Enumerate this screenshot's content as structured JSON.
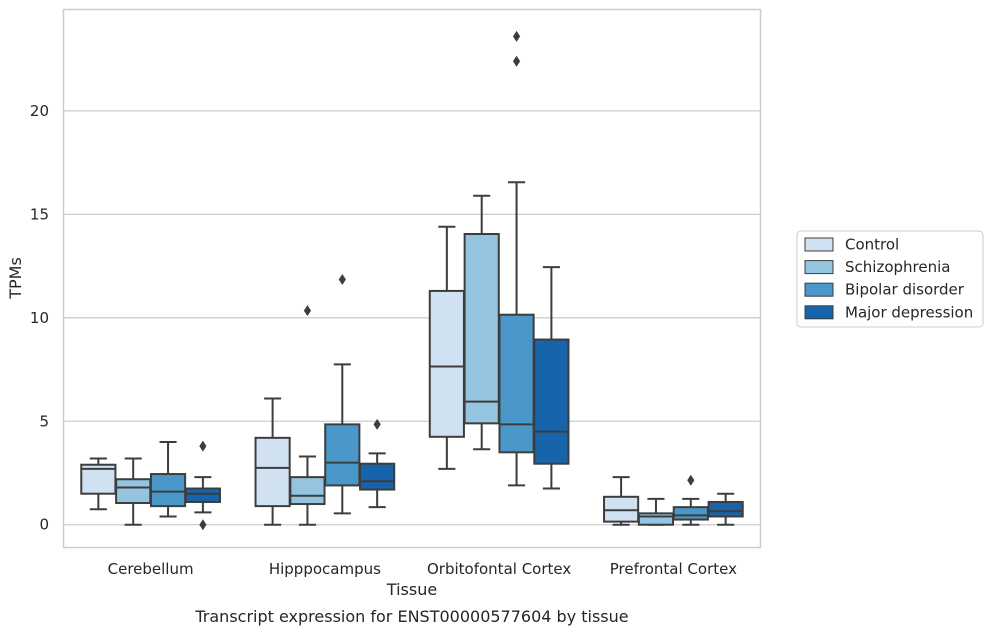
{
  "chart_data": {
    "type": "boxplot",
    "xlabel": "Tissue",
    "ylabel": "TPMs",
    "caption": "Transcript expression for ENST00000577604 by tissue",
    "ylim": [
      -1.1,
      24.9
    ],
    "yticks": [
      0,
      5,
      10,
      15,
      20
    ],
    "grid": "horizontal",
    "legend_position": "right",
    "categories": [
      "Cerebellum",
      "Hipppocampus",
      "Orbitofontal Cortex",
      "Prefrontal Cortex"
    ],
    "series": [
      {
        "name": "Control",
        "color": "#d0e1f2",
        "boxes": [
          {
            "whislo": 0.75,
            "q1": 1.5,
            "median": 2.7,
            "q3": 2.9,
            "whishi": 3.2,
            "fliers": []
          },
          {
            "whislo": 0.0,
            "q1": 0.9,
            "median": 2.75,
            "q3": 4.2,
            "whishi": 6.1,
            "fliers": []
          },
          {
            "whislo": 2.7,
            "q1": 4.25,
            "median": 7.65,
            "q3": 11.3,
            "whishi": 14.4,
            "fliers": []
          },
          {
            "whislo": 0.0,
            "q1": 0.15,
            "median": 0.7,
            "q3": 1.35,
            "whishi": 2.3,
            "fliers": []
          }
        ]
      },
      {
        "name": "Schizophrenia",
        "color": "#94c4df",
        "boxes": [
          {
            "whislo": 0.0,
            "q1": 1.05,
            "median": 1.8,
            "q3": 2.2,
            "whishi": 3.2,
            "fliers": []
          },
          {
            "whislo": 0.0,
            "q1": 1.0,
            "median": 1.4,
            "q3": 2.3,
            "whishi": 3.3,
            "fliers": [
              10.35
            ]
          },
          {
            "whislo": 3.65,
            "q1": 4.9,
            "median": 5.95,
            "q3": 14.05,
            "whishi": 15.9,
            "fliers": []
          },
          {
            "whislo": 0.0,
            "q1": 0.0,
            "median": 0.4,
            "q3": 0.55,
            "whishi": 1.25,
            "fliers": []
          }
        ]
      },
      {
        "name": "Bipolar disorder",
        "color": "#4a98c9",
        "boxes": [
          {
            "whislo": 0.4,
            "q1": 0.9,
            "median": 1.6,
            "q3": 2.45,
            "whishi": 4.0,
            "fliers": []
          },
          {
            "whislo": 0.55,
            "q1": 1.9,
            "median": 3.0,
            "q3": 4.85,
            "whishi": 7.75,
            "fliers": [
              11.85
            ]
          },
          {
            "whislo": 1.9,
            "q1": 3.5,
            "median": 4.85,
            "q3": 10.15,
            "whishi": 16.55,
            "fliers": [
              22.4,
              23.6
            ]
          },
          {
            "whislo": 0.0,
            "q1": 0.25,
            "median": 0.45,
            "q3": 0.85,
            "whishi": 1.25,
            "fliers": [
              2.15
            ]
          }
        ]
      },
      {
        "name": "Major depression",
        "color": "#1764ab",
        "boxes": [
          {
            "whislo": 0.6,
            "q1": 1.1,
            "median": 1.5,
            "q3": 1.75,
            "whishi": 2.3,
            "fliers": [
              3.8,
              0.0
            ]
          },
          {
            "whislo": 0.85,
            "q1": 1.7,
            "median": 2.1,
            "q3": 2.95,
            "whishi": 3.45,
            "fliers": [
              4.85
            ]
          },
          {
            "whislo": 1.75,
            "q1": 2.95,
            "median": 4.5,
            "q3": 8.95,
            "whishi": 12.45,
            "fliers": []
          },
          {
            "whislo": 0.0,
            "q1": 0.4,
            "median": 0.65,
            "q3": 1.1,
            "whishi": 1.5,
            "fliers": []
          }
        ]
      }
    ]
  }
}
